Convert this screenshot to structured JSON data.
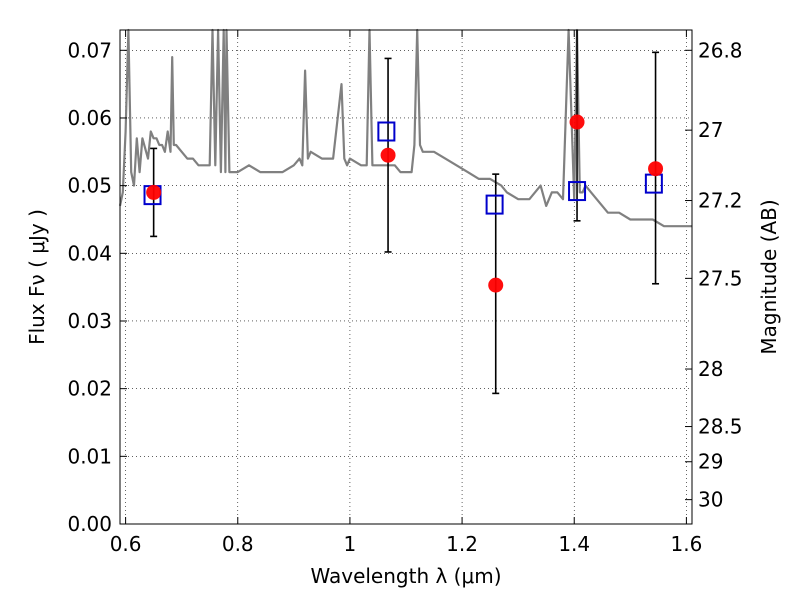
{
  "chart_data": {
    "type": "scatter",
    "xlabel": "Wavelength  λ (μm)",
    "ylabel": "Flux  Fν  ( μJy )",
    "ylabel_right": "Magnitude (AB)",
    "xlim": [
      0.59,
      1.61
    ],
    "ylim": [
      0.0,
      0.073
    ],
    "x_ticks": [
      0.6,
      0.8,
      1.0,
      1.2,
      1.4,
      1.6
    ],
    "x_tick_labels": [
      "0.6",
      "0.8",
      "1",
      "1.2",
      "1.4",
      "1.6"
    ],
    "y_ticks": [
      0.0,
      0.01,
      0.02,
      0.03,
      0.04,
      0.05,
      0.06,
      0.07
    ],
    "y_tick_labels": [
      "0.00",
      "0.01",
      "0.02",
      "0.03",
      "0.04",
      "0.05",
      "0.06",
      "0.07"
    ],
    "right_ticks": [
      {
        "flux": 0.07,
        "label": "26.8"
      },
      {
        "flux": 0.0582,
        "label": "27"
      },
      {
        "flux": 0.0478,
        "label": "27.2"
      },
      {
        "flux": 0.0363,
        "label": "27.5"
      },
      {
        "flux": 0.0229,
        "label": "28"
      },
      {
        "flux": 0.0144,
        "label": "28.5"
      },
      {
        "flux": 0.0092,
        "label": "29"
      },
      {
        "flux": 0.0036,
        "label": "30"
      }
    ],
    "grid": true,
    "series": [
      {
        "kind": "model_spectrum",
        "color": "#808080",
        "x": [
          0.59,
          0.595,
          0.6,
          0.605,
          0.61,
          0.615,
          0.62,
          0.625,
          0.63,
          0.64,
          0.645,
          0.65,
          0.655,
          0.66,
          0.665,
          0.67,
          0.675,
          0.68,
          0.683,
          0.686,
          0.69,
          0.7,
          0.71,
          0.72,
          0.73,
          0.74,
          0.75,
          0.755,
          0.76,
          0.765,
          0.77,
          0.775,
          0.778,
          0.78,
          0.785,
          0.788,
          0.79,
          0.8,
          0.82,
          0.84,
          0.86,
          0.88,
          0.9,
          0.91,
          0.915,
          0.92,
          0.925,
          0.93,
          0.95,
          0.97,
          0.985,
          0.99,
          0.995,
          1.0,
          1.02,
          1.03,
          1.035,
          1.04,
          1.045,
          1.05,
          1.06,
          1.07,
          1.08,
          1.09,
          1.1,
          1.11,
          1.115,
          1.12,
          1.125,
          1.13,
          1.15,
          1.17,
          1.19,
          1.21,
          1.23,
          1.25,
          1.27,
          1.28,
          1.3,
          1.32,
          1.34,
          1.35,
          1.36,
          1.37,
          1.38,
          1.39,
          1.4,
          1.405,
          1.41,
          1.415,
          1.42,
          1.43,
          1.44,
          1.45,
          1.46,
          1.47,
          1.48,
          1.5,
          1.52,
          1.54,
          1.56,
          1.58,
          1.6,
          1.61
        ],
        "y": [
          0.047,
          0.049,
          0.058,
          0.073,
          0.052,
          0.05,
          0.057,
          0.052,
          0.057,
          0.054,
          0.058,
          0.057,
          0.057,
          0.056,
          0.056,
          0.055,
          0.058,
          0.055,
          0.069,
          0.056,
          0.056,
          0.055,
          0.054,
          0.054,
          0.053,
          0.053,
          0.053,
          0.073,
          0.053,
          0.073,
          0.052,
          0.073,
          0.052,
          0.073,
          0.052,
          0.052,
          0.052,
          0.052,
          0.053,
          0.052,
          0.052,
          0.052,
          0.053,
          0.054,
          0.053,
          0.067,
          0.054,
          0.055,
          0.054,
          0.054,
          0.065,
          0.054,
          0.053,
          0.054,
          0.053,
          0.053,
          0.073,
          0.053,
          0.053,
          0.053,
          0.053,
          0.053,
          0.053,
          0.052,
          0.052,
          0.052,
          0.056,
          0.073,
          0.056,
          0.055,
          0.055,
          0.054,
          0.053,
          0.052,
          0.051,
          0.051,
          0.05,
          0.049,
          0.048,
          0.048,
          0.05,
          0.047,
          0.049,
          0.049,
          0.048,
          0.073,
          0.048,
          0.073,
          0.049,
          0.049,
          0.05,
          0.049,
          0.048,
          0.047,
          0.046,
          0.046,
          0.046,
          0.045,
          0.045,
          0.045,
          0.044,
          0.044,
          0.044,
          0.044
        ]
      },
      {
        "kind": "model_photometry",
        "marker": "square",
        "color": "#0000cc",
        "x": [
          0.648,
          1.065,
          1.258,
          1.405,
          1.542
        ],
        "y": [
          0.0486,
          0.058,
          0.0472,
          0.0492,
          0.0503
        ]
      },
      {
        "kind": "observed",
        "marker": "circle",
        "color": "#ff0000",
        "x": [
          0.65,
          1.068,
          1.26,
          1.405,
          1.545
        ],
        "y": [
          0.049,
          0.0545,
          0.0353,
          0.0594,
          0.0525
        ],
        "yerr_low": [
          0.0425,
          0.0402,
          0.0193,
          0.0448,
          0.0355
        ],
        "yerr_high": [
          0.0555,
          0.0688,
          0.0517,
          0.073,
          0.0697
        ]
      }
    ]
  }
}
